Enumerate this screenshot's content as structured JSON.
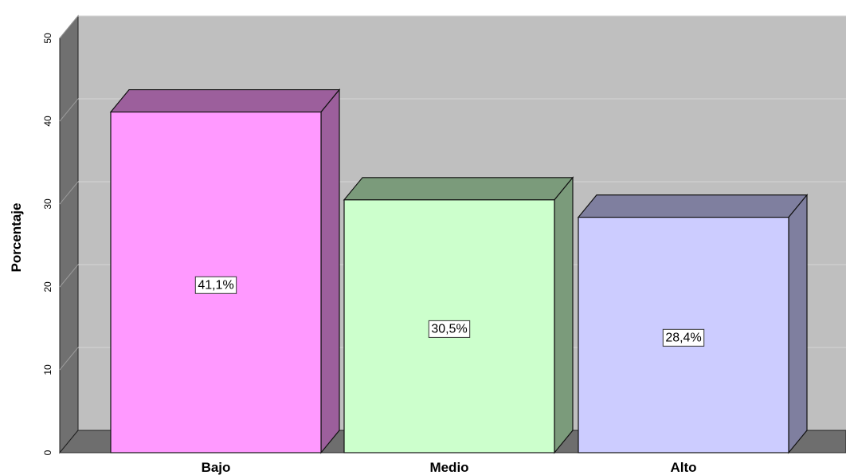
{
  "chart_data": {
    "type": "bar",
    "style": "3d",
    "categories": [
      "Bajo",
      "Medio",
      "Alto"
    ],
    "values": [
      41.1,
      30.5,
      28.4
    ],
    "data_labels": [
      "41,1%",
      "30,5%",
      "28,4%"
    ],
    "ylabel": "Porcentaje",
    "ylim": [
      0,
      50
    ],
    "yticks": [
      "0",
      "10",
      "20",
      "30",
      "40",
      "50"
    ],
    "grid": true,
    "legend": "none",
    "colors": {
      "background_wall": "#bfbfbf",
      "side_wall": "#707070",
      "floor": "#6e6e6e",
      "gridline": "#d6d6d6",
      "bars": [
        {
          "front": "#ff99ff",
          "top": "#9c5f9c",
          "side": "#9c5f9c"
        },
        {
          "front": "#ccffcc",
          "top": "#7b9b7b",
          "side": "#7b9b7b"
        },
        {
          "front": "#ccccff",
          "top": "#7f7f9f",
          "side": "#7f7f9f"
        }
      ]
    }
  }
}
